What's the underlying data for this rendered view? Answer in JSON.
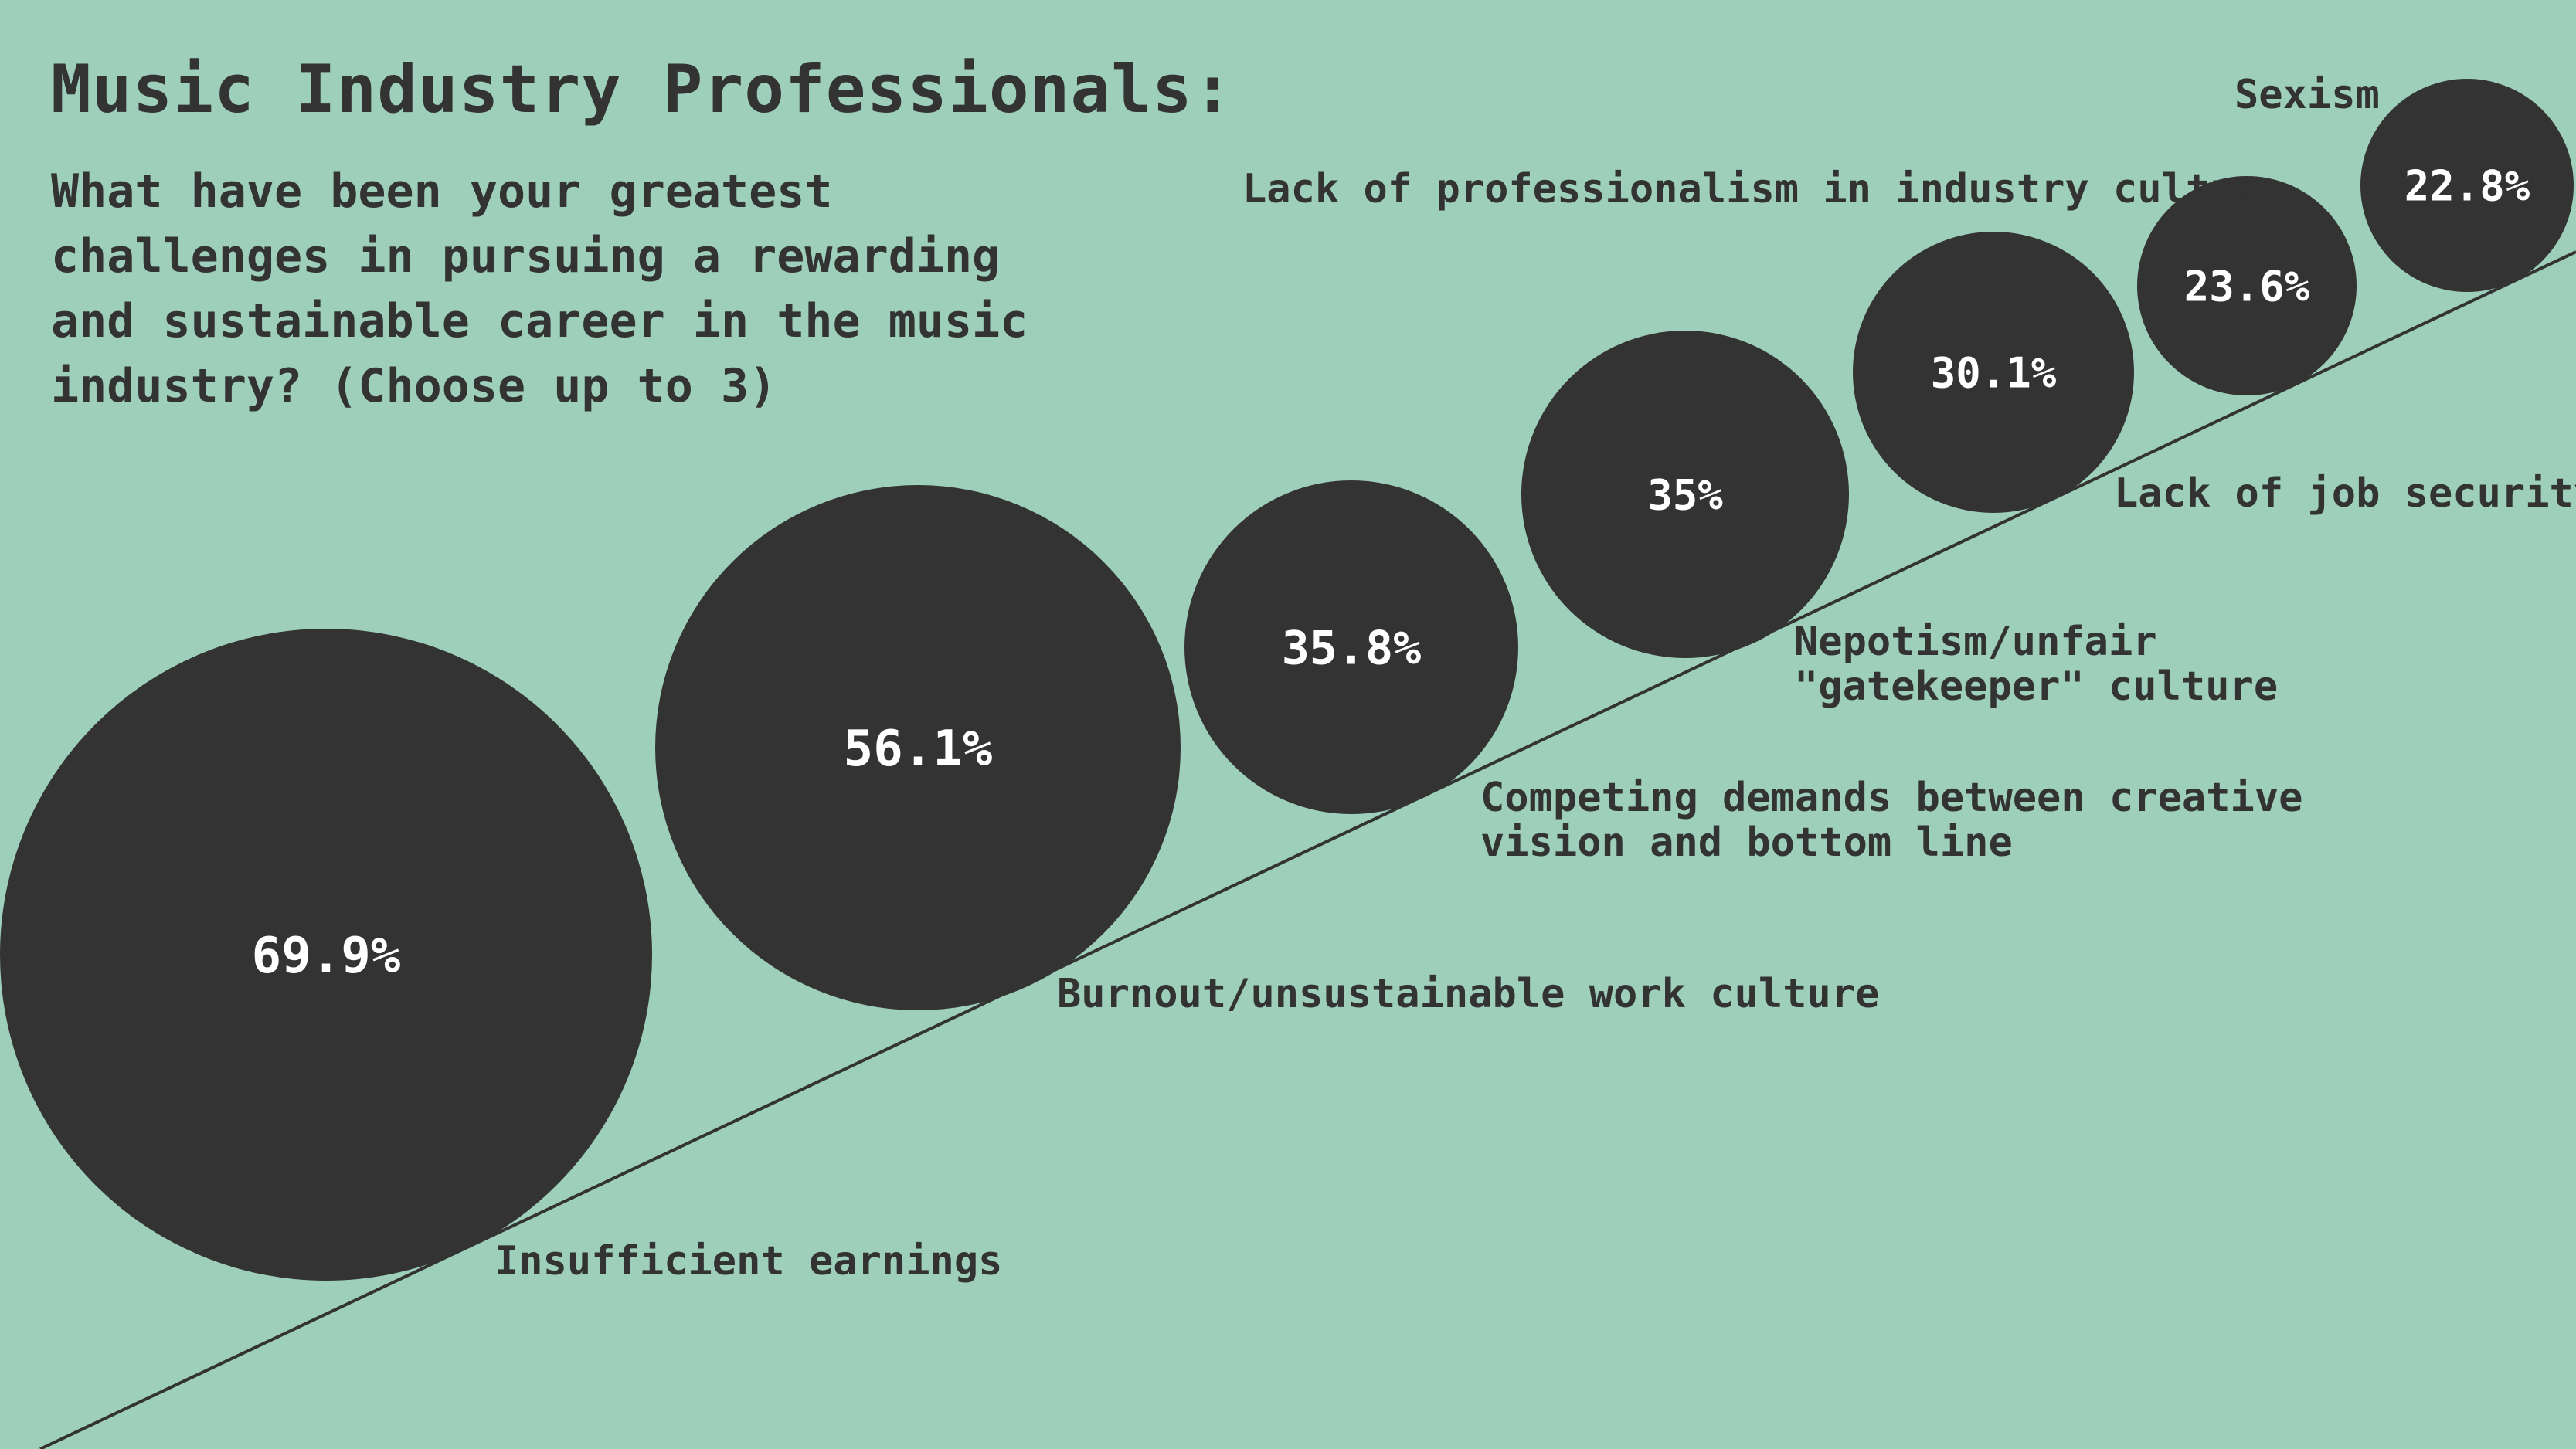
{
  "chart_data": {
    "type": "bubble",
    "title": "Music Industry Professionals:",
    "subtitle": "What have been your greatest challenges in pursuing a rewarding and sustainable career in the music industry? (Choose up to 3)",
    "categories": [
      "Insufficient earnings",
      "Burnout/unsustainable work culture",
      "Competing demands between creative vision and bottom line",
      "Nepotism/unfair \"gatekeeper\" culture",
      "Lack of job security",
      "Lack of professionalism in industry culture",
      "Sexism"
    ],
    "values": [
      69.9,
      56.1,
      35.8,
      35,
      30.1,
      23.6,
      22.8
    ],
    "value_labels": [
      "69.9%",
      "56.1%",
      "35.8%",
      "35%",
      "30.1%",
      "23.6%",
      "22.8%"
    ],
    "unit": "%",
    "colors": {
      "background": "#9ecfbb",
      "bubble": "#333333",
      "bubble_text": "#ffffff",
      "text": "#333333"
    }
  }
}
